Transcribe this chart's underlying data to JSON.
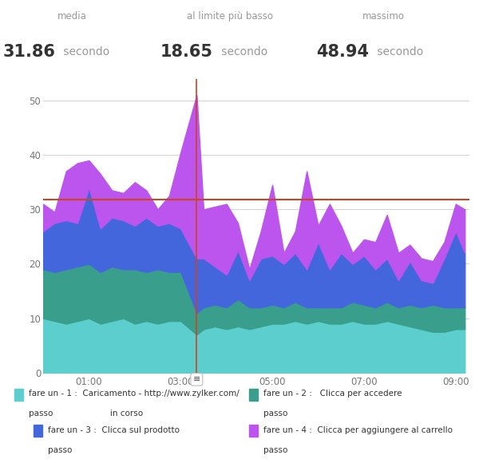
{
  "title_stats": {
    "media_label": "media",
    "media_value": "31.86",
    "media_unit": "secondo",
    "min_label": "al limite più basso",
    "min_value": "18.65",
    "min_unit": "secondo",
    "max_label": "massimo",
    "max_value": "48.94",
    "max_unit": "secondo"
  },
  "colors": {
    "layer1": "#5dcece",
    "layer2": "#3a9e8c",
    "layer3": "#4466dd",
    "layer4": "#bb55ee",
    "hline": "#cc4422",
    "vline": "#cc4422",
    "background": "#ffffff",
    "grid": "#cccccc"
  },
  "mean_line_y": 31.86,
  "vline_x": 3.35,
  "ylim": [
    0,
    54
  ],
  "yticks": [
    0,
    10,
    20,
    30,
    40,
    50
  ],
  "xtick_positions": [
    1,
    3,
    5,
    7,
    9
  ],
  "xtick_labels": [
    "01:00",
    "03:00",
    "05:00",
    "07:00",
    "09:00"
  ],
  "time_points": [
    0.0,
    0.25,
    0.5,
    0.75,
    1.0,
    1.25,
    1.5,
    1.75,
    2.0,
    2.25,
    2.5,
    2.75,
    3.0,
    3.35,
    3.5,
    3.75,
    4.0,
    4.25,
    4.5,
    4.75,
    5.0,
    5.25,
    5.5,
    5.75,
    6.0,
    6.25,
    6.5,
    6.75,
    7.0,
    7.25,
    7.5,
    7.75,
    8.0,
    8.25,
    8.5,
    8.75,
    9.0,
    9.2
  ],
  "layer1_vals": [
    10,
    9.5,
    9,
    9.5,
    10,
    9,
    9.5,
    10,
    9,
    9.5,
    9,
    9.5,
    9.5,
    7,
    8,
    8.5,
    8,
    8.5,
    8,
    8.5,
    9,
    9,
    9.5,
    9,
    9.5,
    9,
    9,
    9.5,
    9,
    9,
    9.5,
    9,
    8.5,
    8,
    7.5,
    7.5,
    8,
    8
  ],
  "layer2_vals": [
    9,
    9,
    10,
    10,
    10,
    9.5,
    10,
    9,
    10,
    9,
    10,
    9,
    9,
    4,
    4,
    4,
    4,
    5,
    4,
    3.5,
    3.5,
    3,
    3.5,
    3,
    2.5,
    3,
    3,
    3.5,
    3.5,
    3,
    3.5,
    3,
    4,
    4,
    5,
    4.5,
    4,
    4
  ],
  "layer3_vals": [
    7,
    9,
    9,
    8,
    14,
    8,
    9,
    9,
    8,
    10,
    8,
    9,
    8,
    10,
    9,
    7,
    6,
    9,
    5,
    9,
    9,
    8,
    9,
    7,
    12,
    7,
    10,
    7,
    9,
    7,
    8,
    5,
    8,
    5,
    4,
    9,
    14,
    10
  ],
  "layer4_vals": [
    5,
    2,
    9,
    11,
    5,
    10,
    5,
    5,
    8,
    5,
    3,
    5,
    14,
    30,
    9,
    11,
    13,
    5,
    2,
    5,
    13,
    2,
    4,
    18,
    3,
    12,
    5,
    2,
    3,
    5,
    8,
    5,
    3,
    4,
    4,
    3,
    5,
    8
  ],
  "xlim": [
    0,
    9.3
  ]
}
